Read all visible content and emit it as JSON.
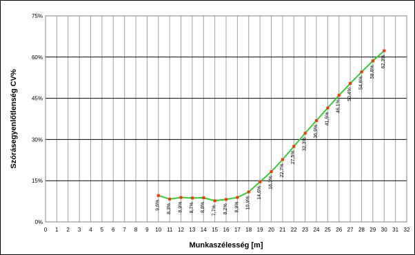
{
  "chart_data": {
    "type": "line",
    "title": "",
    "xlabel": "Munkaszélesség [m]",
    "ylabel": "Szórásegyenlőtlenség CV%",
    "xlim": [
      0,
      32
    ],
    "ylim": [
      0,
      75
    ],
    "x_ticks": [
      0,
      1,
      2,
      3,
      4,
      5,
      6,
      7,
      8,
      9,
      10,
      11,
      12,
      13,
      14,
      15,
      16,
      17,
      18,
      19,
      20,
      21,
      22,
      23,
      24,
      25,
      26,
      27,
      28,
      29,
      30,
      31,
      32
    ],
    "y_ticks": [
      0,
      15,
      30,
      45,
      60,
      75
    ],
    "y_tick_labels": [
      "0%",
      "15%",
      "30%",
      "45%",
      "60%",
      "75%"
    ],
    "grid": {
      "vertical": true,
      "horizontal": true
    },
    "legend": "none",
    "colors": {
      "line": "#33cc33",
      "marker": "#ff3300",
      "background": "#ffffff",
      "grid": "#808080"
    },
    "series": [
      {
        "x": [
          10,
          11,
          12,
          13,
          14,
          15,
          16,
          17,
          18,
          19,
          20,
          21,
          22,
          23,
          24,
          25,
          26,
          27,
          28,
          29,
          30
        ],
        "values": [
          9.6,
          8.3,
          8.9,
          8.7,
          8.8,
          7.7,
          8.2,
          8.9,
          10.9,
          14.6,
          18.3,
          22.7,
          27.5,
          32.3,
          36.9,
          41.5,
          46.1,
          50.4,
          54.6,
          58.6,
          62.3
        ],
        "labels": [
          "9,6%",
          "8,3%",
          "8,9%",
          "8,7%",
          "8,8%",
          "7,7%",
          "8,2%",
          "8,9%",
          "10,9%",
          "14,6%",
          "18,3%",
          "22,7%",
          "27,5%",
          "32,3%",
          "36,9%",
          "41,5%",
          "46,1%",
          "50,4%",
          "54,6%",
          "58,6%",
          "62,3%"
        ]
      }
    ]
  }
}
